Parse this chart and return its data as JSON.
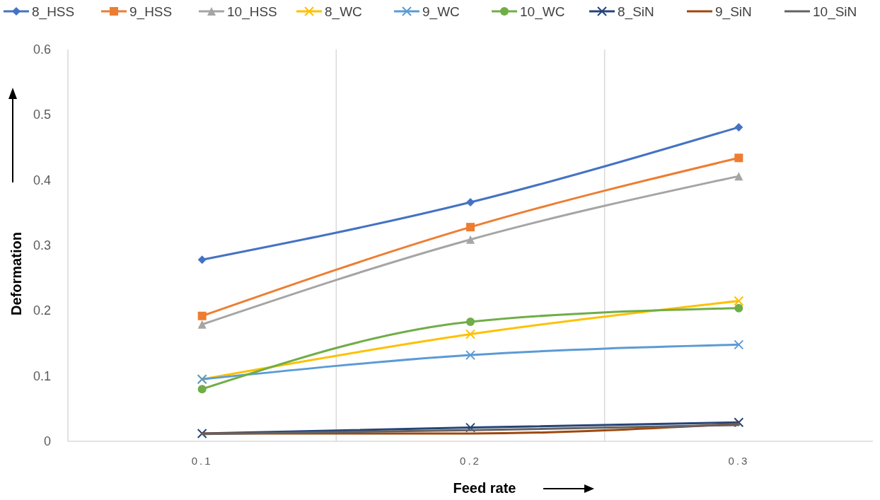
{
  "chart_data": {
    "type": "line",
    "xlabel": "Feed rate",
    "ylabel": "Deformation",
    "categories": [
      "0.1",
      "0.2",
      "0.3"
    ],
    "ylim": [
      0,
      0.6
    ],
    "yticks": [
      {
        "value": 0,
        "label": "0"
      },
      0.1,
      0.2,
      0.3,
      0.4,
      0.5,
      0.6
    ],
    "grid": "x",
    "legend": "top",
    "series": [
      {
        "name": "8_HSS",
        "color": "#4472c4",
        "marker": "diamond",
        "values": [
          0.278,
          0.366,
          0.481
        ]
      },
      {
        "name": "9_HSS",
        "color": "#ed7d31",
        "marker": "square",
        "values": [
          0.192,
          0.328,
          0.434
        ]
      },
      {
        "name": "10_HSS",
        "color": "#a5a5a5",
        "marker": "triangle",
        "values": [
          0.179,
          0.309,
          0.406
        ]
      },
      {
        "name": "8_WC",
        "color": "#ffc000",
        "marker": "cross",
        "values": [
          0.095,
          0.164,
          0.215
        ]
      },
      {
        "name": "9_WC",
        "color": "#5b9bd5",
        "marker": "cross",
        "values": [
          0.095,
          0.132,
          0.148
        ]
      },
      {
        "name": "10_WC",
        "color": "#70ad47",
        "marker": "circle",
        "values": [
          0.08,
          0.183,
          0.204
        ]
      },
      {
        "name": "8_SiN",
        "color": "#264478",
        "marker": "cross",
        "values": [
          0.012,
          0.021,
          0.029
        ]
      },
      {
        "name": "9_SiN",
        "color": "#9e480e",
        "marker": "none",
        "values": [
          0.012,
          0.012,
          0.027
        ]
      },
      {
        "name": "10_SiN",
        "color": "#636363",
        "marker": "none",
        "values": [
          0.011,
          0.017,
          0.025
        ]
      }
    ]
  }
}
